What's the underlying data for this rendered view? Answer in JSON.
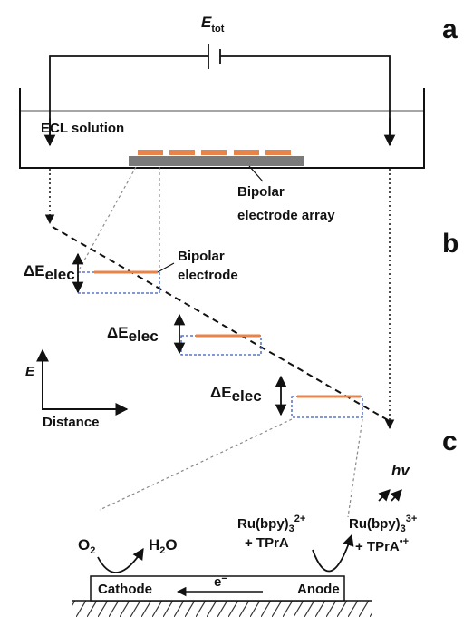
{
  "panels": [
    "a",
    "b",
    "c"
  ],
  "battery": {
    "main": "E",
    "sub": "tot"
  },
  "solution": "ECL solution",
  "array_label": [
    "Bipolar",
    "electrode array"
  ],
  "electrode_label": [
    "Bipolar",
    "electrode"
  ],
  "delta_labels": [
    {
      "main": "ΔE",
      "sub": "elec"
    },
    {
      "main": "ΔE",
      "sub": "elec"
    },
    {
      "main": "ΔE",
      "sub": "elec"
    }
  ],
  "axes": {
    "y": "E",
    "x": "Distance"
  },
  "reactions": {
    "o2": {
      "main": "O",
      "sub": "2"
    },
    "h2o": {
      "h": "H",
      "sub": "2",
      "o": "O"
    },
    "reduced": {
      "main": "Ru(bpy)",
      "sub": "3",
      "sup": "2+",
      "co": "+ TPrA"
    },
    "oxidized": {
      "main": "Ru(bpy)",
      "sub": "3",
      "sup": "3+",
      "co": "+ TPrA",
      "co_sup": "•+"
    },
    "light": "hv"
  },
  "electrode": {
    "cathode": "Cathode",
    "anode": "Anode",
    "electron": "e",
    "electron_sup": "−"
  }
}
